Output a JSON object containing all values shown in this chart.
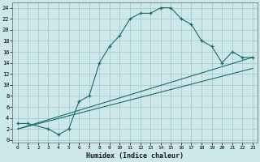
{
  "xlabel": "Humidex (Indice chaleur)",
  "bg_color": "#cce8e8",
  "grid_color": "#aacccc",
  "line_color": "#1a6e6a",
  "xlim": [
    -0.5,
    23.5
  ],
  "ylim": [
    -0.5,
    25
  ],
  "xtick_vals": [
    0,
    1,
    2,
    3,
    4,
    5,
    6,
    7,
    8,
    9,
    10,
    11,
    12,
    13,
    14,
    15,
    16,
    17,
    18,
    19,
    20,
    21,
    22,
    23
  ],
  "xtick_labels": [
    "0",
    "1",
    "2",
    "3",
    "4",
    "5",
    "6",
    "7",
    "8",
    "9",
    "10",
    "11",
    "12",
    "13",
    "14",
    "15",
    "16",
    "17",
    "18",
    "19",
    "20",
    "21",
    "22",
    "23"
  ],
  "ytick_vals": [
    0,
    2,
    4,
    6,
    8,
    10,
    12,
    14,
    16,
    18,
    20,
    22,
    24
  ],
  "ytick_labels": [
    "0",
    "2",
    "4",
    "6",
    "8",
    "10",
    "12",
    "14",
    "16",
    "18",
    "20",
    "22",
    "24"
  ],
  "curve1_x": [
    0,
    1,
    3,
    4,
    5,
    6,
    7,
    8,
    9,
    10,
    11,
    12,
    13,
    14,
    15,
    16,
    17,
    18,
    19,
    20,
    21,
    22,
    23
  ],
  "curve1_y": [
    3,
    3,
    2,
    1,
    2,
    7,
    8,
    14,
    17,
    19,
    22,
    23,
    23,
    24,
    24,
    22,
    21,
    18,
    17,
    14,
    16,
    15,
    15
  ],
  "line1_x": [
    0,
    23
  ],
  "line1_y": [
    2,
    13
  ],
  "line2_x": [
    0,
    23
  ],
  "line2_y": [
    2,
    15
  ]
}
